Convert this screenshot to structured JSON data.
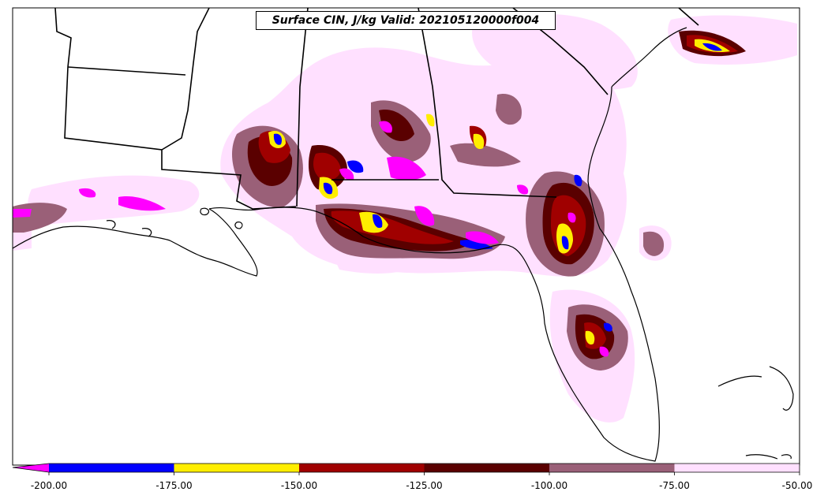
{
  "title": "Surface CIN, J/kg Valid: 202105120000f004",
  "legend": {
    "ticks": [
      "-200.00",
      "-175.00",
      "-150.00",
      "-125.00",
      "-100.00",
      "-75.00",
      "-50.00"
    ],
    "colors": [
      "#ff00ff",
      "#0000ff",
      "#ffee00",
      "#a00000",
      "#5a0000",
      "#9a6078",
      "#ffe0ff"
    ],
    "extend": "min"
  },
  "colors": {
    "magenta": "#ff00ff",
    "blue": "#0000ff",
    "yellow": "#ffee00",
    "red": "#a00000",
    "dark_red": "#5a0000",
    "mauve": "#9a6078",
    "light_pink": "#ffe0ff",
    "coast": "#000000"
  }
}
